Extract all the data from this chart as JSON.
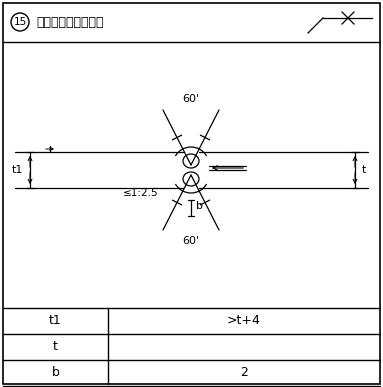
{
  "title_num": "15",
  "title_text": "手工电弧焊焊接接头",
  "bg_color": "#ffffff",
  "line_color": "#000000",
  "table_rows": [
    {
      "label": "t1",
      "value": ">t+4"
    },
    {
      "label": "t",
      "value": ""
    },
    {
      "label": "b",
      "value": "2"
    }
  ],
  "angle_top": "60'",
  "angle_bottom": "60'",
  "slope_label": "≤1:2.5",
  "t1_label": "t1",
  "t_label": "t",
  "b_label": "b"
}
